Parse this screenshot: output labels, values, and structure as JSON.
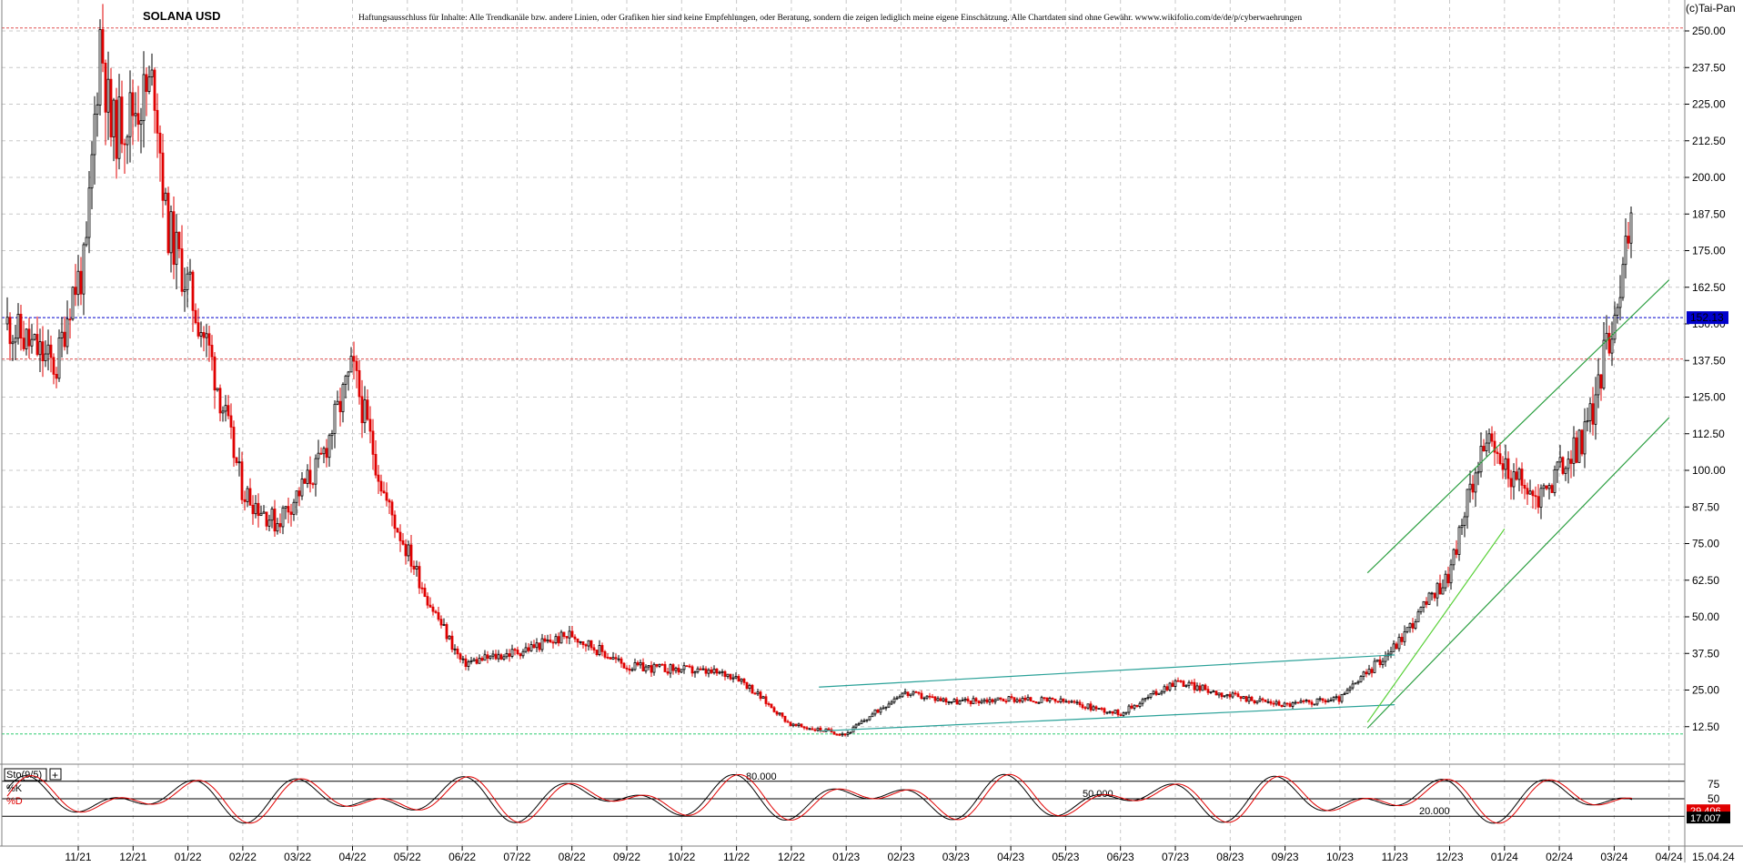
{
  "header": {
    "title": "SOLANA USD",
    "disclaimer": "Haftungsausschluss für Inhalte: Alle Trendkanäle bzw. andere Linien, oder Grafiken hier sind keine Empfehlungen, oder Beratung, sondern die zeigen lediglich meine eigene Einschätzung. Alle Chartdaten sind ohne Gewähr. wwww.wikifolio.com/de/de/p/cyberwaehrungen",
    "copyright": "(c)Tai-Pan"
  },
  "colors": {
    "up": "#000000",
    "down": "#e00000",
    "grid": "#c8c8c8",
    "channel": "#2aa198",
    "channel_steep": "#2ea043",
    "channel_inner": "#5ad13a",
    "current_line": "#0000cc",
    "price_box": "#0000cc",
    "resistance": "#e05050",
    "support": "#2ecc71",
    "sto_k": "#000000",
    "sto_d": "#e00000"
  },
  "chart_data": [
    {
      "type": "candlestick",
      "title": "SOLANA USD",
      "xlabel": "",
      "ylabel": "",
      "ylim": [
        0,
        252
      ],
      "y_ticks": [
        "250.00",
        "237.50",
        "225.00",
        "212.50",
        "200.00",
        "187.50",
        "175.00",
        "162.50",
        "150.00",
        "137.50",
        "125.00",
        "112.50",
        "100.00",
        "87.50",
        "75.00",
        "62.50",
        "50.00",
        "37.50",
        "25.00",
        "12.50"
      ],
      "x_ticks": [
        "11/21",
        "12/21",
        "01/22",
        "02/22",
        "03/22",
        "04/22",
        "05/22",
        "06/22",
        "07/22",
        "08/22",
        "09/22",
        "10/22",
        "11/22",
        "12/22",
        "01/23",
        "02/23",
        "03/23",
        "04/23",
        "05/23",
        "06/23",
        "07/23",
        "08/23",
        "09/23",
        "10/23",
        "11/23",
        "12/23",
        "01/24",
        "02/24",
        "03/24",
        "04/24"
      ],
      "x_end_label": "15.04.24",
      "grid": true,
      "current_price": "152.13",
      "horizontal_lines": [
        {
          "name": "resistance-high",
          "value": 251
        },
        {
          "name": "resistance-mid",
          "value": 138
        },
        {
          "name": "support-low",
          "value": 10
        },
        {
          "name": "current",
          "value": 152.13
        }
      ],
      "price_path": [
        [
          "11/21",
          135
        ],
        [
          "11/21",
          160
        ],
        [
          "11/21",
          170
        ],
        [
          "11/21",
          250
        ],
        [
          "12/21",
          215
        ],
        [
          "12/21",
          232
        ],
        [
          "01/22",
          185
        ],
        [
          "01/22",
          140
        ],
        [
          "02/22",
          93
        ],
        [
          "03/22",
          82
        ],
        [
          "03/22",
          102
        ],
        [
          "04/22",
          135
        ],
        [
          "05/22",
          90
        ],
        [
          "05/22",
          55
        ],
        [
          "06/22",
          34
        ],
        [
          "07/22",
          38
        ],
        [
          "08/22",
          44
        ],
        [
          "09/22",
          33
        ],
        [
          "10/22",
          32
        ],
        [
          "11/22",
          30
        ],
        [
          "12/22",
          13
        ],
        [
          "01/23",
          10
        ],
        [
          "02/23",
          24
        ],
        [
          "03/23",
          21
        ],
        [
          "04/23",
          22
        ],
        [
          "05/23",
          21
        ],
        [
          "06/23",
          17
        ],
        [
          "07/23",
          28
        ],
        [
          "08/23",
          23
        ],
        [
          "09/23",
          20
        ],
        [
          "10/23",
          22
        ],
        [
          "11/23",
          40
        ],
        [
          "12/23",
          65
        ],
        [
          "01/24",
          110
        ],
        [
          "01/24",
          93
        ],
        [
          "02/24",
          90
        ],
        [
          "02/24",
          110
        ],
        [
          "03/24",
          120
        ],
        [
          "03/24",
          190
        ],
        [
          "04/24",
          185
        ],
        [
          "04/24",
          152
        ]
      ],
      "trendlines": [
        {
          "name": "sideways-channel-top",
          "from": [
            "01/23",
            26
          ],
          "to": [
            "11/23",
            37
          ]
        },
        {
          "name": "sideways-channel-bottom",
          "from": [
            "01/23",
            11
          ],
          "to": [
            "11/23",
            20
          ]
        },
        {
          "name": "uptrend-channel-top",
          "from": [
            "11/23",
            65
          ],
          "to": [
            "04/24",
            165
          ]
        },
        {
          "name": "uptrend-channel-bottom",
          "from": [
            "11/23",
            12
          ],
          "to": [
            "04/24",
            118
          ]
        },
        {
          "name": "uptrend-inner",
          "from": [
            "11/23",
            14
          ],
          "to": [
            "01/24",
            80
          ]
        }
      ]
    },
    {
      "type": "line",
      "title": "Sto(9/5)",
      "ylim": [
        0,
        100
      ],
      "y_ticks": [
        "75",
        "50"
      ],
      "levels": [
        "80.000",
        "50.000",
        "20.000"
      ],
      "series": [
        {
          "name": "%K",
          "last": "17.007"
        },
        {
          "name": "%D",
          "last": "29.406"
        }
      ]
    }
  ]
}
